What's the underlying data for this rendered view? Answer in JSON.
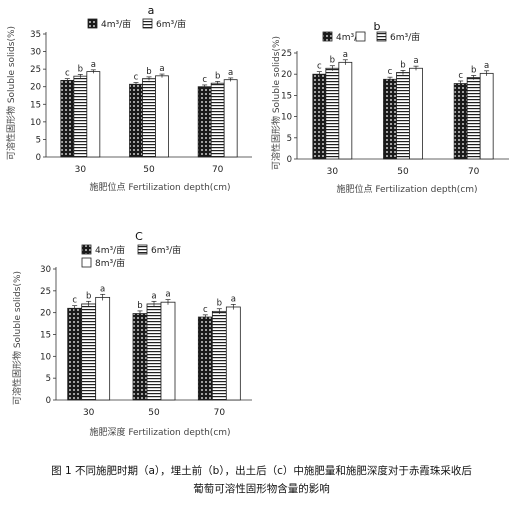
{
  "chart_data": [
    {
      "type": "bar",
      "panel_label": "a",
      "categories": [
        "30",
        "50",
        "70"
      ],
      "series": [
        {
          "name": "4m³/亩",
          "values": [
            21.8,
            20.7,
            20.0
          ],
          "errors": [
            0.5,
            0.5,
            0.5
          ],
          "letters": [
            "c",
            "c",
            "c"
          ]
        },
        {
          "name": "6m³/亩",
          "values": [
            23.0,
            22.3,
            21.0
          ],
          "errors": [
            0.5,
            0.5,
            0.5
          ],
          "letters": [
            "b",
            "b",
            "b"
          ]
        },
        {
          "name": "",
          "values": [
            24.3,
            23.1,
            22.0
          ],
          "errors": [
            0.5,
            0.5,
            0.5
          ],
          "letters": [
            "a",
            "a",
            "a"
          ]
        }
      ],
      "xlabel": "施肥位点 Fertilization depth(cm)",
      "ylabel": "可溶性固形物 Soluble solids(%)",
      "ylim": [
        0,
        35
      ],
      "yticks": [
        0,
        5,
        10,
        15,
        20,
        25,
        30,
        35
      ],
      "legend": "top"
    },
    {
      "type": "bar",
      "panel_label": "b",
      "categories": [
        "30",
        "50",
        "70"
      ],
      "series": [
        {
          "name": "4m³/亩",
          "values": [
            20.0,
            18.8,
            17.8
          ],
          "errors": [
            0.6,
            0.5,
            0.6
          ],
          "letters": [
            "c",
            "c",
            "c"
          ]
        },
        {
          "name": "6m³/亩",
          "values": [
            21.4,
            20.4,
            19.2
          ],
          "errors": [
            0.6,
            0.5,
            0.5
          ],
          "letters": [
            "b",
            "b",
            "b"
          ]
        },
        {
          "name": "",
          "values": [
            22.8,
            21.4,
            20.2
          ],
          "errors": [
            0.6,
            0.5,
            0.6
          ],
          "letters": [
            "a",
            "a",
            "a"
          ]
        }
      ],
      "xlabel": "施肥位点 Fertilization depth(cm)",
      "ylabel": "可溶性固形物 Soluble solids(%)",
      "ylim": [
        0,
        25
      ],
      "yticks": [
        0,
        5,
        10,
        15,
        20,
        25
      ],
      "legend": "top"
    },
    {
      "type": "bar",
      "panel_label": "C",
      "categories": [
        "30",
        "50",
        "70"
      ],
      "series": [
        {
          "name": "4m³/亩",
          "values": [
            21.0,
            19.8,
            19.0
          ],
          "errors": [
            0.6,
            0.6,
            0.5
          ],
          "letters": [
            "c",
            "b",
            "c"
          ]
        },
        {
          "name": "6m³/亩",
          "values": [
            22.0,
            22.0,
            20.3
          ],
          "errors": [
            0.6,
            0.6,
            0.6
          ],
          "letters": [
            "b",
            "a",
            "b"
          ]
        },
        {
          "name": "8m³/亩",
          "values": [
            23.5,
            22.4,
            21.3
          ],
          "errors": [
            0.7,
            0.6,
            0.6
          ],
          "letters": [
            "a",
            "a",
            "a"
          ]
        }
      ],
      "xlabel": "施肥深度 Fertilization depth(cm)",
      "ylabel": "可溶性固形物 Soluble solids(%)",
      "ylim": [
        0,
        30
      ],
      "yticks": [
        0,
        5,
        10,
        15,
        20,
        25,
        30
      ],
      "legend": "top-left"
    }
  ],
  "caption": {
    "line1": "图 1  不同施肥时期（a），埋土前（b），出土后（c）中施肥量和施肥深度对于赤霞珠采收后",
    "line2": "葡萄可溶性固形物含量的影响"
  },
  "colors": {
    "bar_fill": "#ffffff",
    "ink": "#111111",
    "hatch_line": "#222222"
  }
}
